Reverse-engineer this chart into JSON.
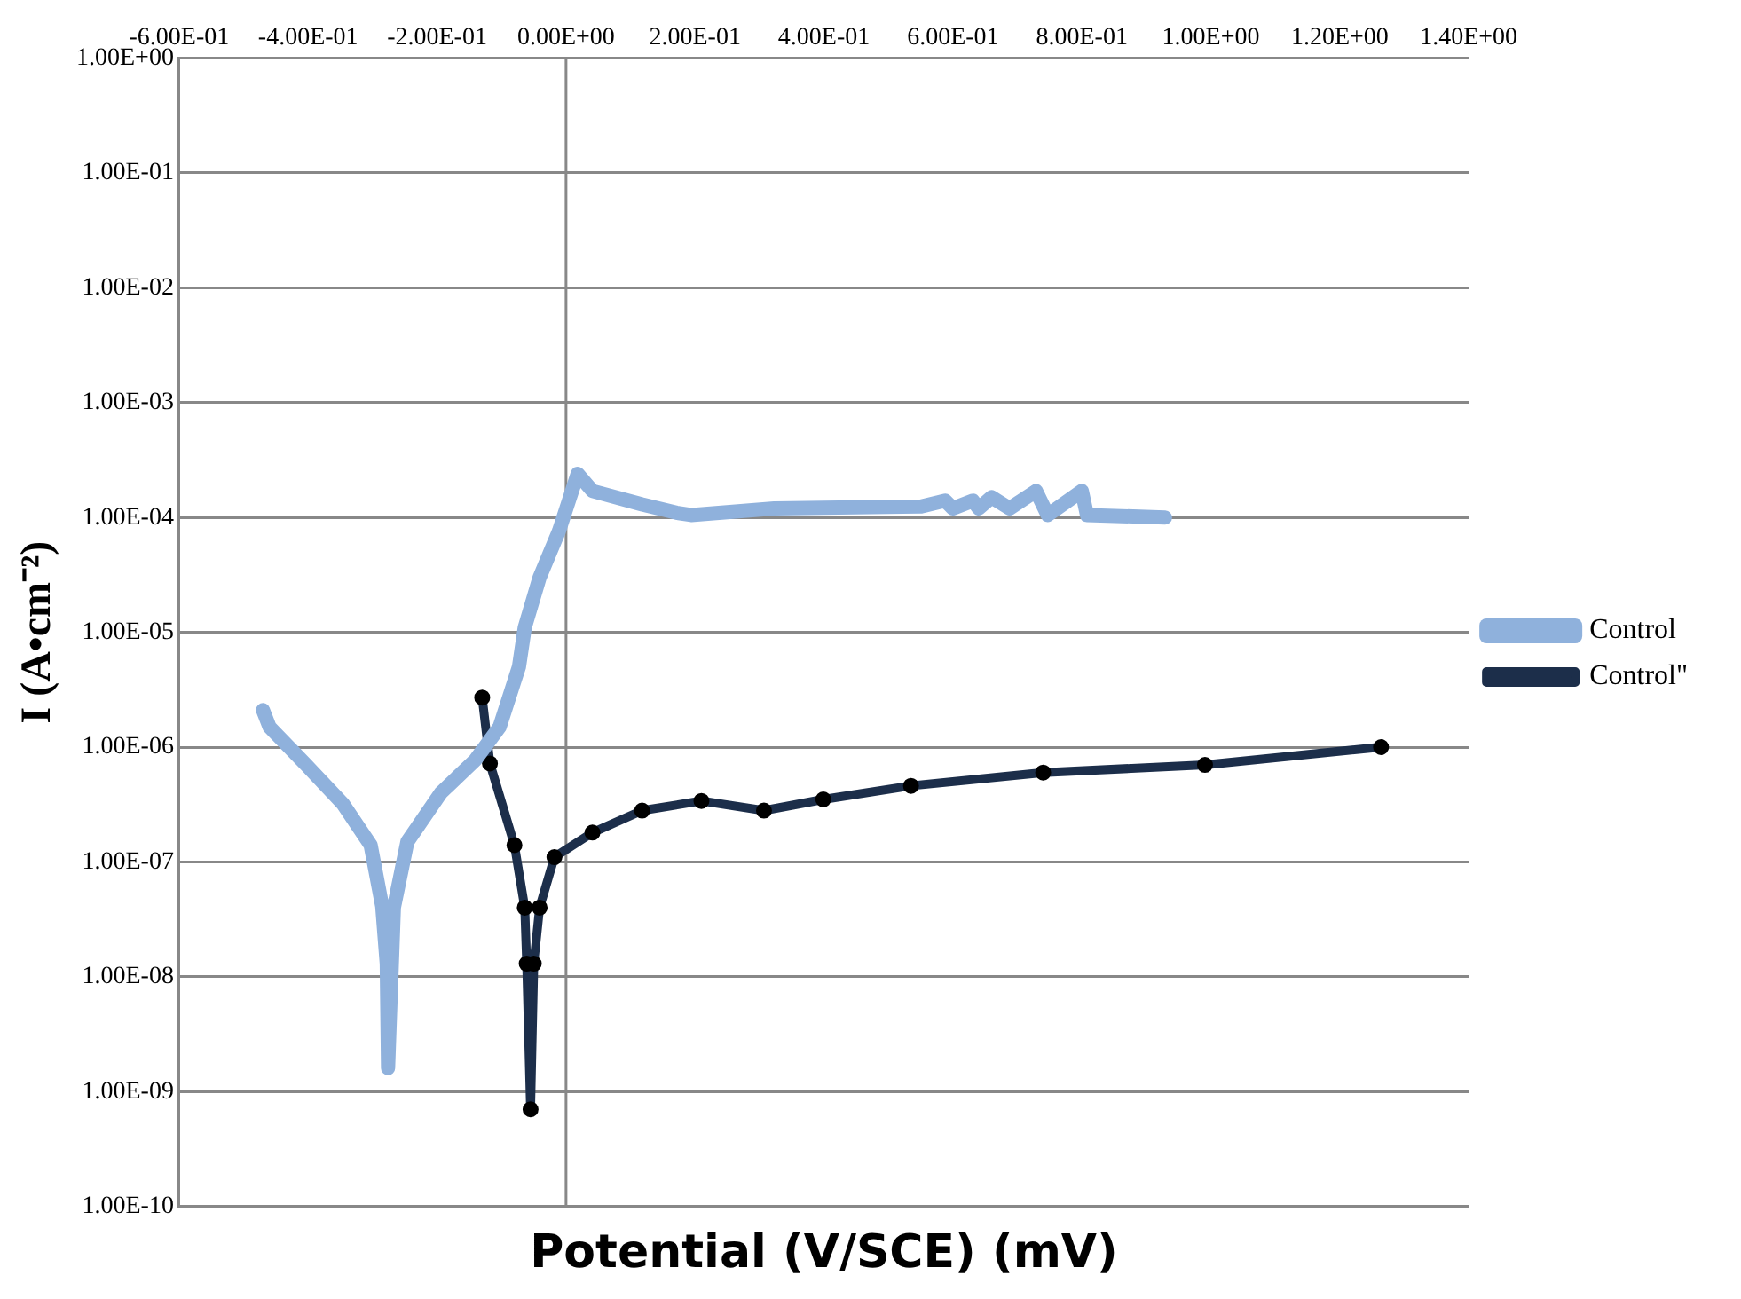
{
  "chart_data": {
    "type": "line",
    "xlabel": "Potential (V/SCE) (mV)",
    "ylabel": "I (A•cm⁻²)",
    "log": "y",
    "grid": "y",
    "ref_lines": [
      {
        "axis": "x",
        "value": 0,
        "color": "#888888"
      }
    ],
    "legend": "right",
    "line_style": "solid",
    "xlim": [
      -0.6,
      1.4
    ],
    "xticks": [
      {
        "value": -0.6,
        "label": "-6.00E-01"
      },
      {
        "value": -0.4,
        "label": "-4.00E-01"
      },
      {
        "value": -0.2,
        "label": "-2.00E-01"
      },
      {
        "value": 0,
        "label": "0.00E+00"
      },
      {
        "value": 0.2,
        "label": "2.00E-01"
      },
      {
        "value": 0.4,
        "label": "4.00E-01"
      },
      {
        "value": 0.6,
        "label": "6.00E-01"
      },
      {
        "value": 0.8,
        "label": "8.00E-01"
      },
      {
        "value": 1,
        "label": "1.00E+00"
      },
      {
        "value": 1.2,
        "label": "1.20E+00"
      },
      {
        "value": 1.4,
        "label": "1.40E+00"
      }
    ],
    "ylim": [
      1e-10,
      1
    ],
    "yticks": [
      {
        "value": 1e-10,
        "label": "1.00E-10"
      },
      {
        "value": 1e-09,
        "label": "1.00E-09"
      },
      {
        "value": 1e-08,
        "label": "1.00E-08"
      },
      {
        "value": 1e-07,
        "label": "1.00E-07"
      },
      {
        "value": 1e-06,
        "label": "1.00E-06"
      },
      {
        "value": 1e-05,
        "label": "1.00E-05"
      },
      {
        "value": 0.0001,
        "label": "1.00E-04"
      },
      {
        "value": 0.001,
        "label": "1.00E-03"
      },
      {
        "value": 0.01,
        "label": "1.00E-02"
      },
      {
        "value": 0.1,
        "label": "1.00E-01"
      },
      {
        "value": 1,
        "label": "1.00E+00"
      }
    ],
    "series": [
      {
        "name": "Control",
        "color": "#8fb1dc",
        "marker": "none",
        "x": [
          -0.47,
          -0.46,
          -0.405,
          -0.346,
          -0.303,
          -0.285,
          -0.278,
          -0.276,
          -0.267,
          -0.246,
          -0.194,
          -0.141,
          -0.103,
          -0.073,
          -0.064,
          -0.041,
          -0.011,
          0.018,
          0.041,
          0.118,
          0.171,
          0.194,
          0.323,
          0.551,
          0.588,
          0.6,
          0.631,
          0.64,
          0.66,
          0.688,
          0.729,
          0.747,
          0.8,
          0.808,
          0.929
        ],
        "values": [
          2.1e-06,
          1.5e-06,
          7.2e-07,
          3.2e-07,
          1.4e-07,
          4.1e-08,
          1.3e-08,
          1.6e-09,
          4e-08,
          1.5e-07,
          4e-07,
          7.7e-07,
          1.5e-06,
          5e-06,
          1.1e-05,
          3e-05,
          7.6e-05,
          0.00024,
          0.00017,
          0.00013,
          0.00011,
          0.000105,
          0.00012,
          0.000125,
          0.00014,
          0.00012,
          0.00014,
          0.00012,
          0.00015,
          0.00012,
          0.00017,
          0.000105,
          0.00017,
          0.000105,
          0.0001
        ]
      },
      {
        "name": "Control\"",
        "color": "#1c2e4a",
        "marker": "circle",
        "x": [
          -0.13,
          -0.118,
          -0.08,
          -0.064,
          -0.061,
          -0.055,
          -0.05,
          -0.041,
          -0.018,
          0.041,
          0.118,
          0.21,
          0.307,
          0.399,
          0.535,
          0.74,
          0.991,
          1.264
        ],
        "values": [
          2.7e-06,
          7.2e-07,
          1.4e-07,
          4e-08,
          1.3e-08,
          7e-10,
          1.3e-08,
          4e-08,
          1.1e-07,
          1.8e-07,
          2.8e-07,
          3.4e-07,
          2.8e-07,
          3.5e-07,
          4.6e-07,
          6e-07,
          7e-07,
          1e-06
        ]
      }
    ]
  }
}
